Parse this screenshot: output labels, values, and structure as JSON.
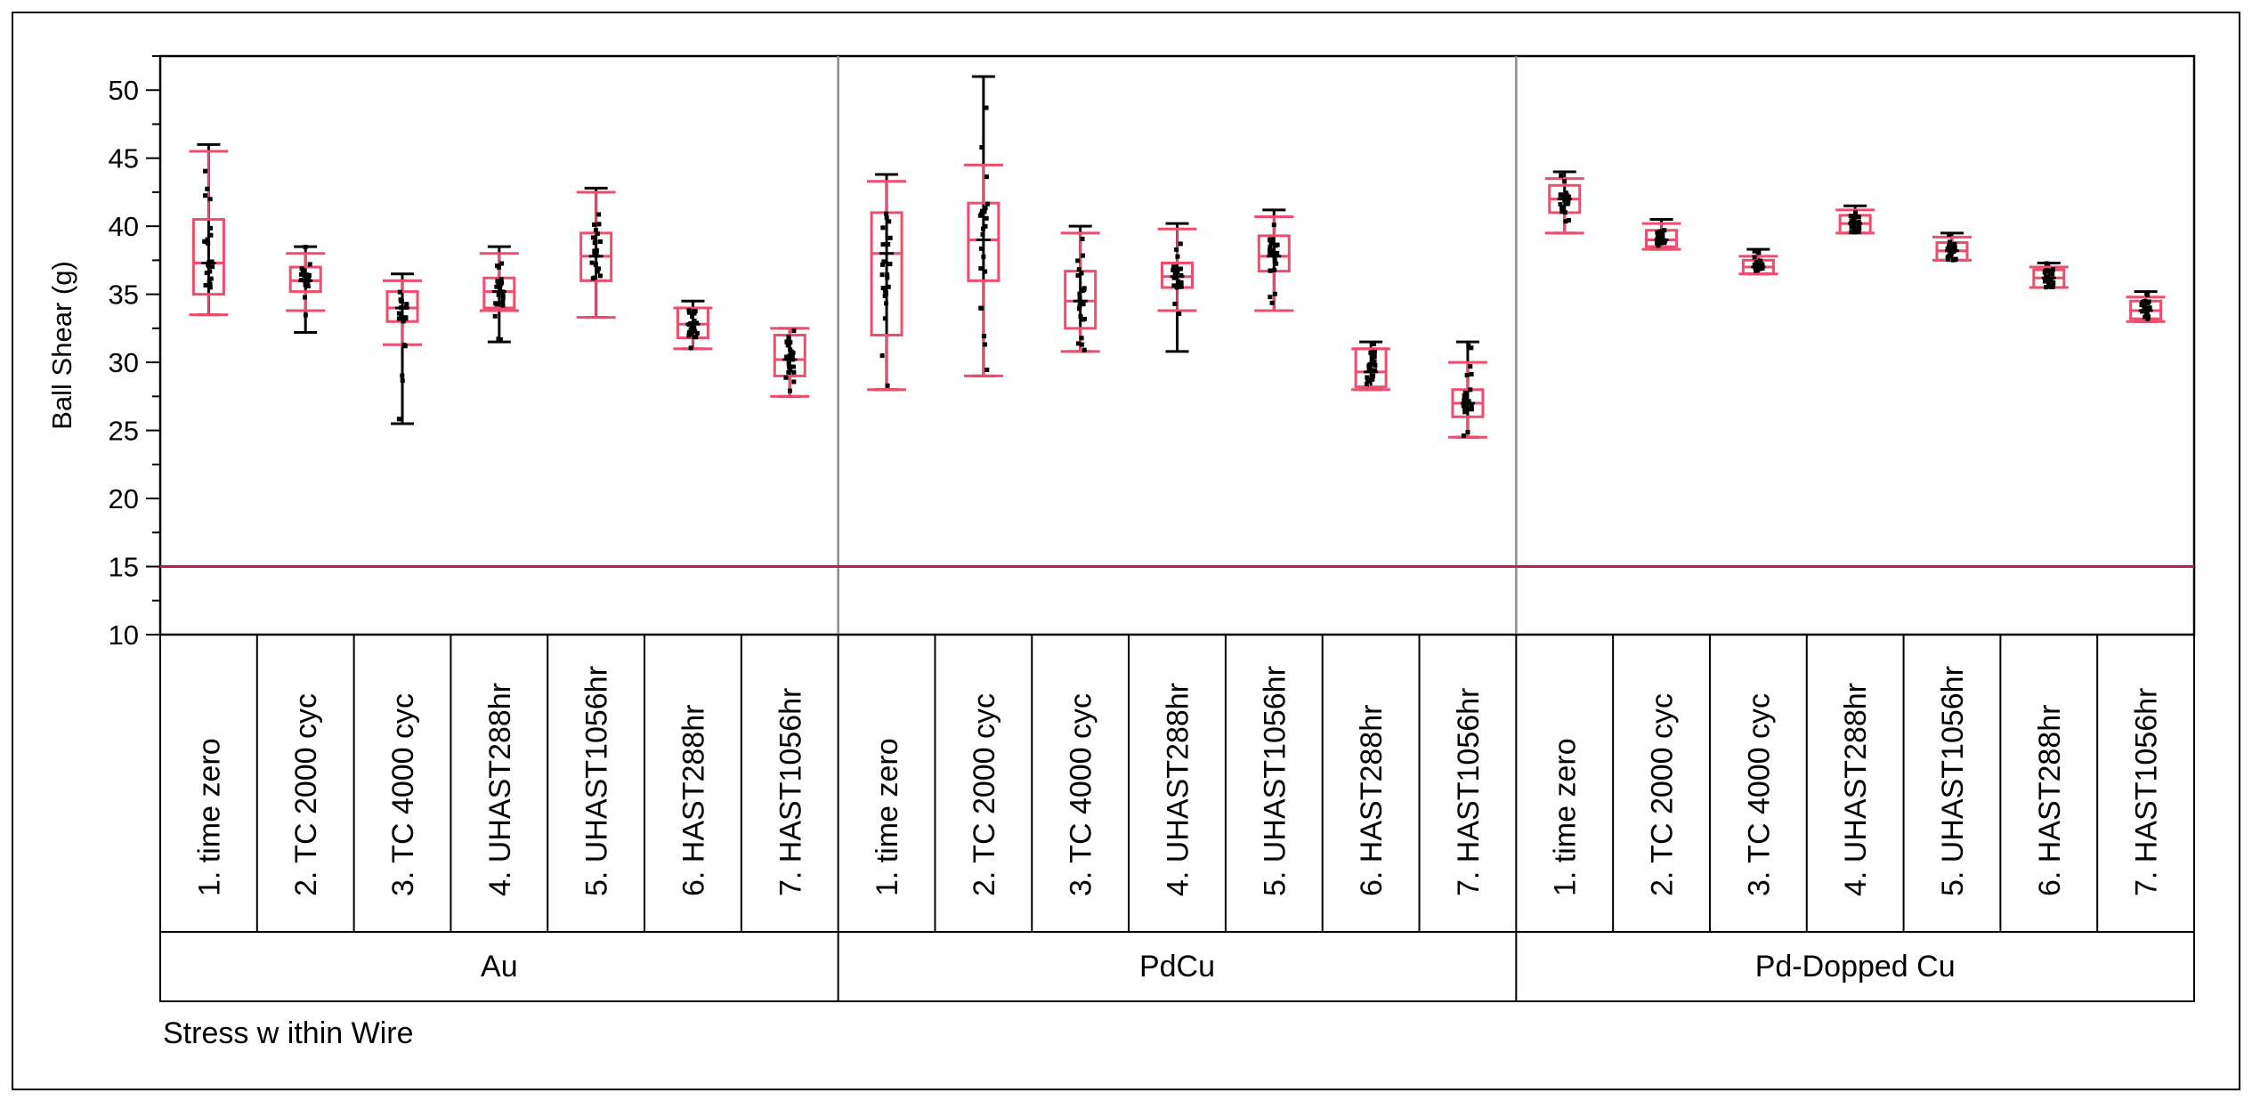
{
  "chart_data": {
    "type": "box",
    "ylabel": "Ball Shear (g)",
    "xlabel": "Stress w ithin Wire",
    "ylim": [
      10,
      52.5
    ],
    "yticks": [
      10,
      15,
      20,
      25,
      30,
      35,
      40,
      45,
      50
    ],
    "reference_line": 15,
    "colors": {
      "box": "#ee4d6e",
      "whisker": "#000000",
      "point": "#000000",
      "reference": "#c21a52",
      "divider": "#8c8c8c"
    },
    "groups": [
      {
        "name": "Au",
        "boxes": [
          {
            "label": "1. time zero",
            "min": 33.5,
            "q1": 35.0,
            "median": 37.3,
            "q3": 40.5,
            "max": 46.0,
            "whisker_low": 33.5,
            "whisker_high": 45.5,
            "whisker_color": "box"
          },
          {
            "label": "2. TC 2000 cyc",
            "min": 32.2,
            "q1": 35.2,
            "median": 36.0,
            "q3": 37.0,
            "max": 38.5,
            "whisker_low": 33.8,
            "whisker_high": 38.0,
            "whisker_color": "box"
          },
          {
            "label": "3. TC 4000 cyc",
            "min": 25.5,
            "q1": 33.0,
            "median": 34.0,
            "q3": 35.2,
            "max": 36.5,
            "whisker_low": 31.3,
            "whisker_high": 36.0,
            "whisker_color": "box"
          },
          {
            "label": "4. UHAST288hr",
            "min": 31.5,
            "q1": 34.0,
            "median": 35.2,
            "q3": 36.2,
            "max": 38.5,
            "whisker_low": 33.8,
            "whisker_high": 38.0,
            "whisker_color": "box"
          },
          {
            "label": "5. UHAST1056hr",
            "min": 33.3,
            "q1": 36.0,
            "median": 37.8,
            "q3": 39.5,
            "max": 42.8,
            "whisker_low": 33.3,
            "whisker_high": 42.5,
            "whisker_color": "box"
          },
          {
            "label": "6. HAST288hr",
            "min": 31.0,
            "q1": 31.8,
            "median": 32.8,
            "q3": 34.0,
            "max": 34.5,
            "whisker_low": 31.0,
            "whisker_high": 34.0,
            "whisker_color": "box"
          },
          {
            "label": "7. HAST1056hr",
            "min": 27.5,
            "q1": 29.0,
            "median": 30.2,
            "q3": 32.0,
            "max": 32.5,
            "whisker_low": 27.5,
            "whisker_high": 32.5,
            "whisker_color": "box"
          }
        ]
      },
      {
        "name": "PdCu",
        "boxes": [
          {
            "label": "1. time zero",
            "min": 28.0,
            "q1": 32.0,
            "median": 38.0,
            "q3": 41.0,
            "max": 43.8,
            "whisker_low": 28.0,
            "whisker_high": 43.3,
            "whisker_color": "box"
          },
          {
            "label": "2. TC 2000 cyc",
            "min": 29.0,
            "q1": 36.0,
            "median": 39.0,
            "q3": 41.7,
            "max": 51.0,
            "whisker_low": 29.0,
            "whisker_high": 44.5,
            "whisker_color": "box"
          },
          {
            "label": "3. TC 4000 cyc",
            "min": 30.8,
            "q1": 32.5,
            "median": 34.5,
            "q3": 36.7,
            "max": 40.0,
            "whisker_low": 30.8,
            "whisker_high": 39.5,
            "whisker_color": "box"
          },
          {
            "label": "4. UHAST288hr",
            "min": 30.8,
            "q1": 35.5,
            "median": 36.3,
            "q3": 37.3,
            "max": 40.2,
            "whisker_low": 33.8,
            "whisker_high": 39.8,
            "whisker_color": "box"
          },
          {
            "label": "5. UHAST1056hr",
            "min": 33.8,
            "q1": 36.7,
            "median": 37.8,
            "q3": 39.3,
            "max": 41.2,
            "whisker_low": 33.8,
            "whisker_high": 40.7,
            "whisker_color": "box"
          },
          {
            "label": "6. HAST288hr",
            "min": 28.0,
            "q1": 28.2,
            "median": 29.3,
            "q3": 31.0,
            "max": 31.5,
            "whisker_low": 28.0,
            "whisker_high": 31.0,
            "whisker_color": "box"
          },
          {
            "label": "7. HAST1056hr",
            "min": 24.5,
            "q1": 26.0,
            "median": 27.0,
            "q3": 28.0,
            "max": 31.5,
            "whisker_low": 24.5,
            "whisker_high": 30.0,
            "whisker_color": "box"
          }
        ]
      },
      {
        "name": "Pd-Dopped Cu",
        "boxes": [
          {
            "label": "1. time zero",
            "min": 39.5,
            "q1": 41.0,
            "median": 42.0,
            "q3": 43.0,
            "max": 44.0,
            "whisker_low": 39.5,
            "whisker_high": 43.5,
            "whisker_color": "box"
          },
          {
            "label": "2. TC 2000 cyc",
            "min": 38.3,
            "q1": 38.5,
            "median": 39.0,
            "q3": 39.7,
            "max": 40.5,
            "whisker_low": 38.3,
            "whisker_high": 40.2,
            "whisker_color": "box"
          },
          {
            "label": "3. TC 4000 cyc",
            "min": 36.5,
            "q1": 36.5,
            "median": 37.0,
            "q3": 37.5,
            "max": 38.3,
            "whisker_low": 36.5,
            "whisker_high": 37.8,
            "whisker_color": "box"
          },
          {
            "label": "4. UHAST288hr",
            "min": 39.5,
            "q1": 39.5,
            "median": 40.2,
            "q3": 40.8,
            "max": 41.5,
            "whisker_low": 39.5,
            "whisker_high": 41.2,
            "whisker_color": "box"
          },
          {
            "label": "5. UHAST1056hr",
            "min": 37.5,
            "q1": 37.5,
            "median": 38.2,
            "q3": 38.8,
            "max": 39.5,
            "whisker_low": 37.5,
            "whisker_high": 39.2,
            "whisker_color": "box"
          },
          {
            "label": "6. HAST288hr",
            "min": 35.5,
            "q1": 35.5,
            "median": 36.2,
            "q3": 36.8,
            "max": 37.3,
            "whisker_low": 35.5,
            "whisker_high": 37.0,
            "whisker_color": "box"
          },
          {
            "label": "7. HAST1056hr",
            "min": 33.0,
            "q1": 33.2,
            "median": 33.8,
            "q3": 34.5,
            "max": 35.2,
            "whisker_low": 33.0,
            "whisker_high": 34.8,
            "whisker_color": "box"
          }
        ]
      }
    ]
  }
}
